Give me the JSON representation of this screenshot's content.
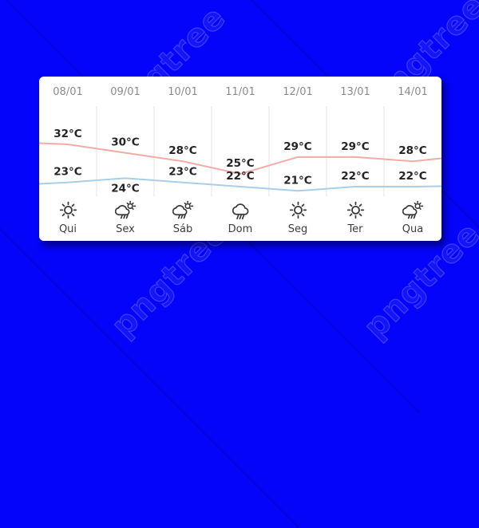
{
  "background": {
    "color": "#0404fa",
    "watermark_text": "pngtree"
  },
  "widget": {
    "type": "weekly-weather-forecast",
    "days": [
      {
        "date": "08/01",
        "high": "32°C",
        "low": "23°C",
        "icon": "sun",
        "weekday": "Qui"
      },
      {
        "date": "09/01",
        "high": "30°C",
        "low": "24°C",
        "icon": "rain-sun",
        "weekday": "Sex"
      },
      {
        "date": "10/01",
        "high": "28°C",
        "low": "23°C",
        "icon": "rain-sun",
        "weekday": "Sáb"
      },
      {
        "date": "11/01",
        "high": "25°C",
        "low": "22°C",
        "icon": "rain",
        "weekday": "Dom"
      },
      {
        "date": "12/01",
        "high": "29°C",
        "low": "21°C",
        "icon": "sun",
        "weekday": "Seg"
      },
      {
        "date": "13/01",
        "high": "29°C",
        "low": "22°C",
        "icon": "sun",
        "weekday": "Ter"
      },
      {
        "date": "14/01",
        "high": "28°C",
        "low": "22°C",
        "icon": "rain-sun",
        "weekday": "Qua"
      }
    ]
  },
  "chart_data": {
    "type": "line",
    "categories": [
      "08/01",
      "09/01",
      "10/01",
      "11/01",
      "12/01",
      "13/01",
      "14/01"
    ],
    "series": [
      {
        "name": "high-temperature",
        "color": "#f2aca6",
        "values": [
          32,
          30,
          28,
          25,
          29,
          29,
          28
        ]
      },
      {
        "name": "low-temperature",
        "color": "#a9cfe8",
        "values": [
          23,
          24,
          23,
          22,
          21,
          22,
          22
        ]
      }
    ],
    "unit": "°C",
    "ylim": [
      20,
      34
    ],
    "grid": "vertical-column-separators",
    "separator_color": "#e3e3e3",
    "legend": "none",
    "point_labels": "visible",
    "low_label_below_index": 1
  }
}
